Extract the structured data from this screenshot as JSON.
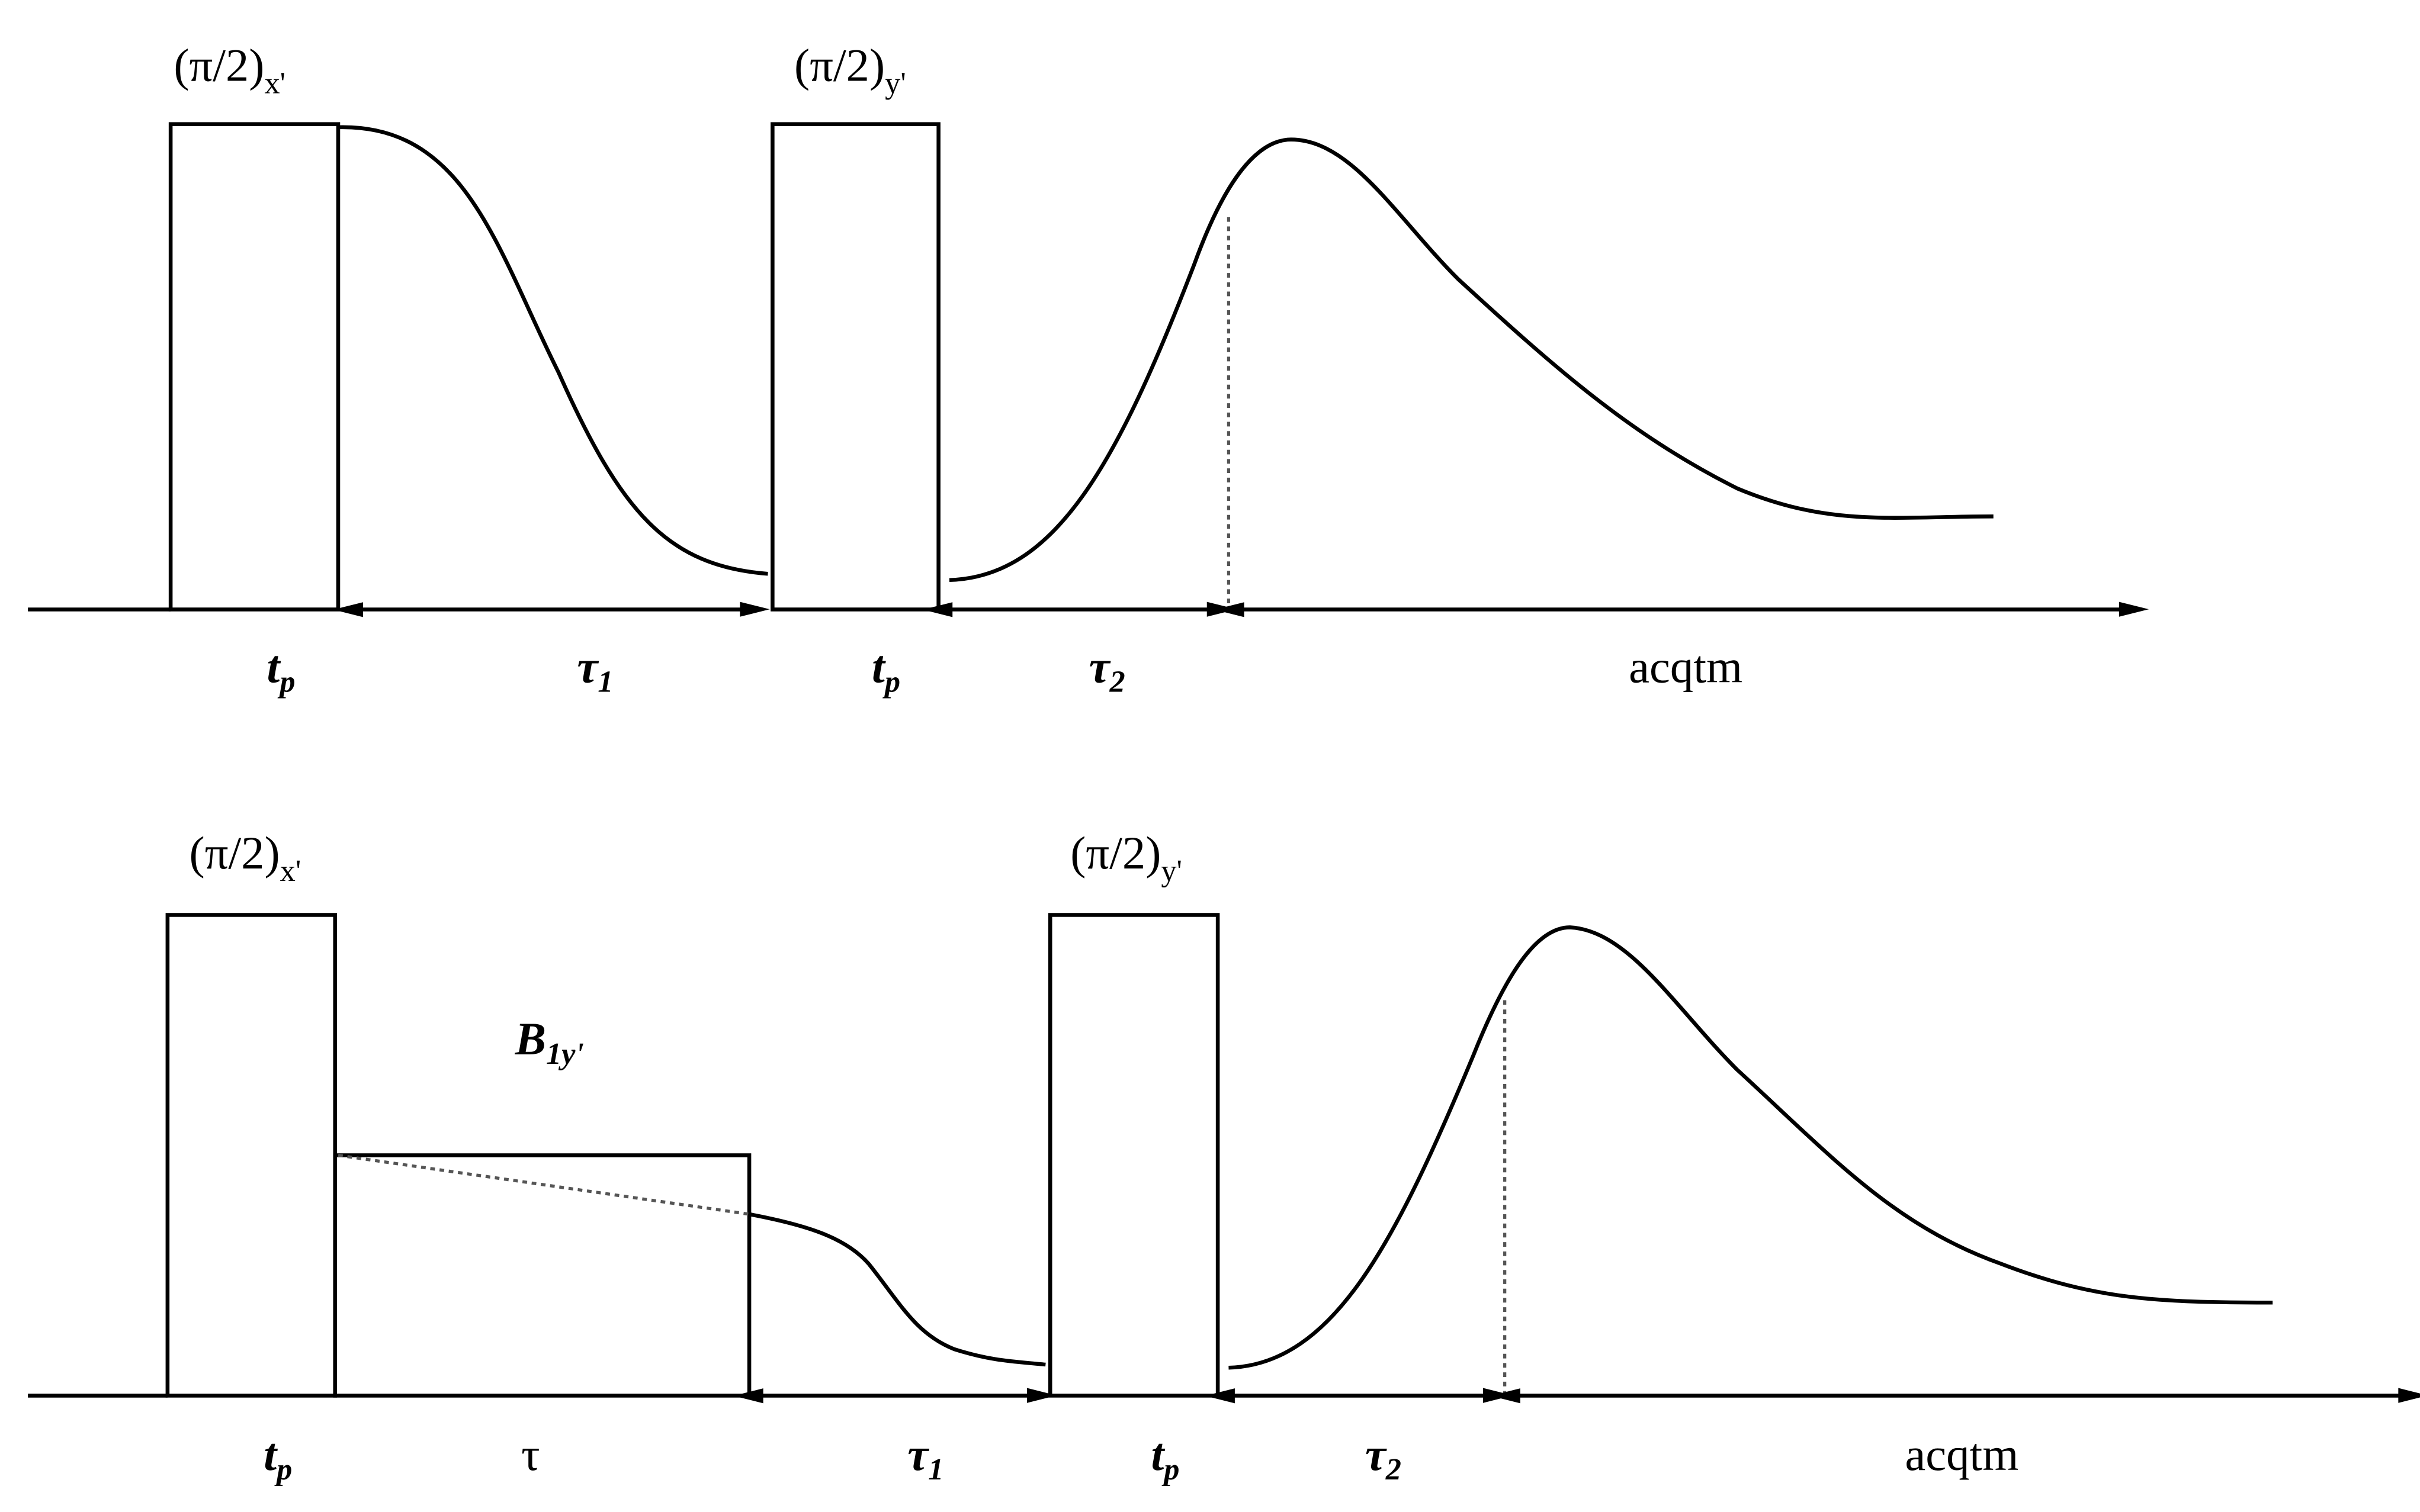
{
  "panels": [
    {
      "pulses": [
        {
          "base": "(π/2)",
          "sub": "x'"
        },
        {
          "base": "(π/2)",
          "sub": "y'"
        }
      ],
      "axis_labels": [
        {
          "base": "t",
          "sub": "p"
        },
        {
          "base": "τ",
          "sub": "1"
        },
        {
          "base": "t",
          "sub": "p"
        },
        {
          "base": "τ",
          "sub": "2"
        },
        {
          "base": "acqtm"
        }
      ]
    },
    {
      "pulses": [
        {
          "base": "(π/2)",
          "sub": "x'"
        },
        {
          "base": "(π/2)",
          "sub": "y'"
        }
      ],
      "spin_lock": {
        "base": "B",
        "sub": "1y'"
      },
      "axis_labels": [
        {
          "base": "t",
          "sub": "p"
        },
        {
          "base": "τ"
        },
        {
          "base": "τ",
          "sub": "1"
        },
        {
          "base": "t",
          "sub": "p"
        },
        {
          "base": "τ",
          "sub": "2"
        },
        {
          "base": "acqtm"
        }
      ]
    }
  ]
}
